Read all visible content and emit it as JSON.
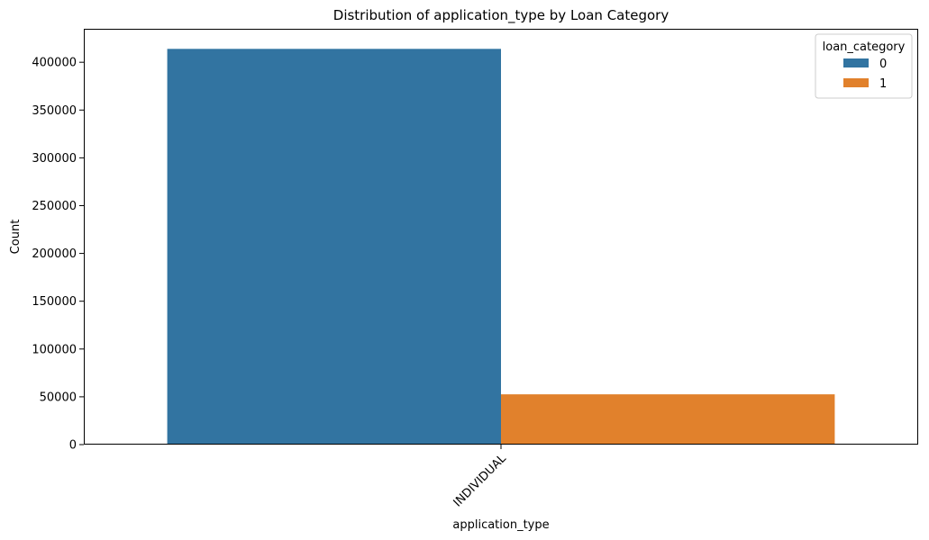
{
  "chart_data": {
    "type": "bar",
    "title": "Distribution of application_type by Loan Category",
    "xlabel": "application_type",
    "ylabel": "Count",
    "categories": [
      "INDIVIDUAL"
    ],
    "series": [
      {
        "name": "0",
        "values": [
          414000
        ],
        "color": "#3274a1"
      },
      {
        "name": "1",
        "values": [
          52600
        ],
        "color": "#e1812c"
      }
    ],
    "ylim": [
      0,
      435000
    ],
    "yticks": [
      0,
      50000,
      100000,
      150000,
      200000,
      250000,
      300000,
      350000,
      400000
    ],
    "ytick_labels": [
      "0",
      "50000",
      "100000",
      "150000",
      "200000",
      "250000",
      "300000",
      "350000",
      "400000"
    ],
    "xtick_labels": [
      "INDIVIDUAL"
    ],
    "legend": {
      "title": "loan_category",
      "position": "top-right"
    },
    "grid": false
  }
}
